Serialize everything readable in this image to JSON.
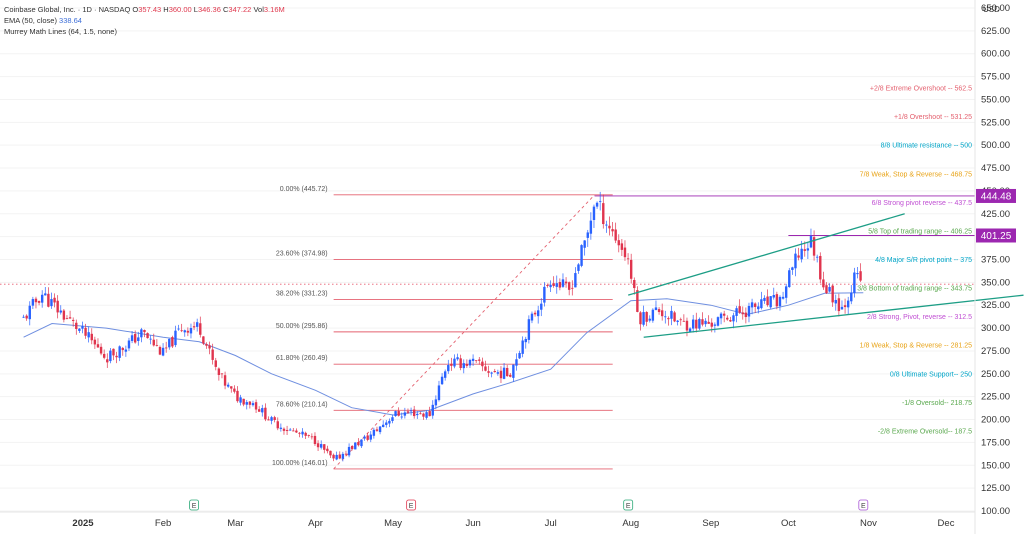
{
  "legend": {
    "symbol": "Coinbase Global, Inc. · 1D · NASDAQ",
    "open_label": "O",
    "open": "357.43",
    "high_label": "H",
    "high": "360.00",
    "low_label": "L",
    "low": "346.36",
    "close_label": "C",
    "close": "347.22",
    "vol_label": "Vol",
    "vol": "3.16M",
    "ema_label": "EMA (50, close)",
    "ema_value": "338.64",
    "murrey_label": "Murrey Math Lines (64, 1.5, none)"
  },
  "colors": {
    "up": "#2962ff",
    "down": "#e0344d",
    "ema": "#6f8fe0",
    "fib": "#e4616f",
    "channel": "#1d9e86",
    "price_tag": "#9c27b0",
    "grid": "#f3f3f3",
    "axis_text": "#333333"
  },
  "chart_data": {
    "type": "candlestick",
    "title": "Coinbase Global, Inc. · 1D · NASDAQ",
    "currency": "USD",
    "y_axis": {
      "min": 100,
      "max": 650,
      "scale": "linear",
      "ticks": [
        "650.00",
        "625.00",
        "600.00",
        "575.00",
        "550.00",
        "525.00",
        "500.00",
        "475.00",
        "450.00",
        "425.00",
        "400.00",
        "375.00",
        "350.00",
        "325.00",
        "300.00",
        "275.00",
        "250.00",
        "225.00",
        "200.00",
        "175.00",
        "150.00",
        "125.00",
        "100.00"
      ]
    },
    "x_axis": {
      "labels": [
        {
          "date": "2025-01-01",
          "text": "2025",
          "bold": true
        },
        {
          "date": "2025-02-01",
          "text": "Feb"
        },
        {
          "date": "2025-03-01",
          "text": "Mar"
        },
        {
          "date": "2025-04-01",
          "text": "Apr"
        },
        {
          "date": "2025-05-01",
          "text": "May"
        },
        {
          "date": "2025-06-01",
          "text": "Jun"
        },
        {
          "date": "2025-07-01",
          "text": "Jul"
        },
        {
          "date": "2025-08-01",
          "text": "Aug"
        },
        {
          "date": "2025-09-01",
          "text": "Sep"
        },
        {
          "date": "2025-10-01",
          "text": "Oct"
        },
        {
          "date": "2025-11-01",
          "text": "Nov"
        },
        {
          "date": "2025-12-01",
          "text": "Dec"
        }
      ],
      "range": [
        "2024-12-09",
        "2026-01-05"
      ]
    },
    "earnings_markers": [
      {
        "date": "2025-02-13",
        "text": "E"
      },
      {
        "date": "2025-05-08",
        "text": "E"
      },
      {
        "date": "2025-07-31",
        "text": "E"
      },
      {
        "date": "2025-10-30",
        "text": "E"
      }
    ],
    "closes": [
      {
        "date": "2024-12-09",
        "close": 310
      },
      {
        "date": "2024-12-16",
        "close": 338
      },
      {
        "date": "2024-12-23",
        "close": 318
      },
      {
        "date": "2025-01-02",
        "close": 292
      },
      {
        "date": "2025-01-10",
        "close": 268
      },
      {
        "date": "2025-01-17",
        "close": 280
      },
      {
        "date": "2025-01-24",
        "close": 295
      },
      {
        "date": "2025-02-01",
        "close": 272
      },
      {
        "date": "2025-02-08",
        "close": 300
      },
      {
        "date": "2025-02-15",
        "close": 302
      },
      {
        "date": "2025-02-22",
        "close": 250
      },
      {
        "date": "2025-03-01",
        "close": 225
      },
      {
        "date": "2025-03-08",
        "close": 218
      },
      {
        "date": "2025-03-15",
        "close": 198
      },
      {
        "date": "2025-03-22",
        "close": 188
      },
      {
        "date": "2025-04-01",
        "close": 177
      },
      {
        "date": "2025-04-08",
        "close": 155
      },
      {
        "date": "2025-04-15",
        "close": 170
      },
      {
        "date": "2025-04-22",
        "close": 182
      },
      {
        "date": "2025-05-01",
        "close": 205
      },
      {
        "date": "2025-05-08",
        "close": 208
      },
      {
        "date": "2025-05-15",
        "close": 205
      },
      {
        "date": "2025-05-22",
        "close": 262
      },
      {
        "date": "2025-06-01",
        "close": 262
      },
      {
        "date": "2025-06-08",
        "close": 252
      },
      {
        "date": "2025-06-15",
        "close": 250
      },
      {
        "date": "2025-06-22",
        "close": 300
      },
      {
        "date": "2025-07-01",
        "close": 355
      },
      {
        "date": "2025-07-08",
        "close": 340
      },
      {
        "date": "2025-07-15",
        "close": 400
      },
      {
        "date": "2025-07-18",
        "close": 440
      },
      {
        "date": "2025-07-25",
        "close": 405
      },
      {
        "date": "2025-07-31",
        "close": 375
      },
      {
        "date": "2025-08-04",
        "close": 310
      },
      {
        "date": "2025-08-12",
        "close": 320
      },
      {
        "date": "2025-08-20",
        "close": 305
      },
      {
        "date": "2025-09-01",
        "close": 305
      },
      {
        "date": "2025-09-10",
        "close": 315
      },
      {
        "date": "2025-09-20",
        "close": 325
      },
      {
        "date": "2025-09-28",
        "close": 330
      },
      {
        "date": "2025-10-05",
        "close": 382
      },
      {
        "date": "2025-10-10",
        "close": 395
      },
      {
        "date": "2025-10-15",
        "close": 345
      },
      {
        "date": "2025-10-22",
        "close": 322
      },
      {
        "date": "2025-10-27",
        "close": 357
      },
      {
        "date": "2025-10-30",
        "close": 347.22
      }
    ],
    "ema50": [
      {
        "date": "2024-12-09",
        "value": 290
      },
      {
        "date": "2024-12-20",
        "value": 305
      },
      {
        "date": "2025-01-10",
        "value": 300
      },
      {
        "date": "2025-02-01",
        "value": 290
      },
      {
        "date": "2025-02-15",
        "value": 285
      },
      {
        "date": "2025-03-01",
        "value": 270
      },
      {
        "date": "2025-03-15",
        "value": 250
      },
      {
        "date": "2025-04-01",
        "value": 232
      },
      {
        "date": "2025-04-15",
        "value": 213
      },
      {
        "date": "2025-05-01",
        "value": 205
      },
      {
        "date": "2025-05-15",
        "value": 210
      },
      {
        "date": "2025-06-01",
        "value": 228
      },
      {
        "date": "2025-06-15",
        "value": 240
      },
      {
        "date": "2025-07-01",
        "value": 255
      },
      {
        "date": "2025-07-15",
        "value": 295
      },
      {
        "date": "2025-08-01",
        "value": 330
      },
      {
        "date": "2025-08-15",
        "value": 332
      },
      {
        "date": "2025-09-01",
        "value": 325
      },
      {
        "date": "2025-09-15",
        "value": 315
      },
      {
        "date": "2025-10-01",
        "value": 325
      },
      {
        "date": "2025-10-15",
        "value": 338
      },
      {
        "date": "2025-10-30",
        "value": 338.64
      }
    ],
    "fib_levels": [
      {
        "label": "0.00% (445.72)",
        "value": 445.72
      },
      {
        "label": "23.60% (374.98)",
        "value": 374.98
      },
      {
        "label": "38.20% (331.23)",
        "value": 331.23
      },
      {
        "label": "50.00% (295.86)",
        "value": 295.86
      },
      {
        "label": "61.80% (260.49)",
        "value": 260.49
      },
      {
        "label": "78.60% (210.14)",
        "value": 210.14
      },
      {
        "label": "100.00% (146.01)",
        "value": 146.01
      }
    ],
    "fib_range": [
      "2025-04-08",
      "2025-07-25"
    ],
    "fib_trend": {
      "from": {
        "date": "2025-04-08",
        "value": 146.01
      },
      "to": {
        "date": "2025-07-18",
        "value": 445.72
      }
    },
    "murrey_lines": [
      {
        "label": "+2/8 Extreme Overshoot -- 562.5",
        "value": 562.5,
        "color": "#e4616f"
      },
      {
        "label": "+1/8 Overshoot -- 531.25",
        "value": 531.25,
        "color": "#e4616f"
      },
      {
        "label": "8/8 Ultimate resistance -- 500",
        "value": 500,
        "color": "#00a5c8"
      },
      {
        "label": "7/8 Weak, Stop & Reverse -- 468.75",
        "value": 468.75,
        "color": "#e8a317"
      },
      {
        "label": "6/8 Strong pivot reverse -- 437.5",
        "value": 437.5,
        "color": "#c04fd3"
      },
      {
        "label": "5/8 Top of trading range -- 406.25",
        "value": 406.25,
        "color": "#5aa84e"
      },
      {
        "label": "4/8 Major S/R pivot point -- 375",
        "value": 375,
        "color": "#00a5c8"
      },
      {
        "label": "3/8 Bottom of trading range -- 343.75",
        "value": 343.75,
        "color": "#5aa84e"
      },
      {
        "label": "2/8 Strong, Pivot, reverse -- 312.5",
        "value": 312.5,
        "color": "#c04fd3"
      },
      {
        "label": "1/8 Weak, Stop & Reverse -- 281.25",
        "value": 281.25,
        "color": "#e8a317"
      },
      {
        "label": "0/8 Ultimate Support-- 250",
        "value": 250,
        "color": "#00a5c8"
      },
      {
        "label": "-1/8 Oversold-- 218.75",
        "value": 218.75,
        "color": "#5aa84e"
      },
      {
        "label": "-2/8 Extreme Oversold-- 187.5",
        "value": 187.5,
        "color": "#5aa84e"
      }
    ],
    "channel": {
      "upper": {
        "from": {
          "date": "2025-07-31",
          "value": 336
        },
        "to": {
          "date": "2025-11-15",
          "value": 425
        }
      },
      "lower": {
        "from": {
          "date": "2025-08-06",
          "value": 290
        },
        "to": {
          "date": "2025-12-31",
          "value": 336
        }
      }
    },
    "horizontal_lines": [
      {
        "value": 444.48,
        "from": "2025-07-18"
      },
      {
        "value": 401.25,
        "from": "2025-10-01"
      }
    ],
    "reference_line": {
      "value": 348
    },
    "price_labels": [
      {
        "value": 444.48,
        "text": "444.48"
      },
      {
        "value": 401.25,
        "text": "401.25"
      }
    ]
  }
}
